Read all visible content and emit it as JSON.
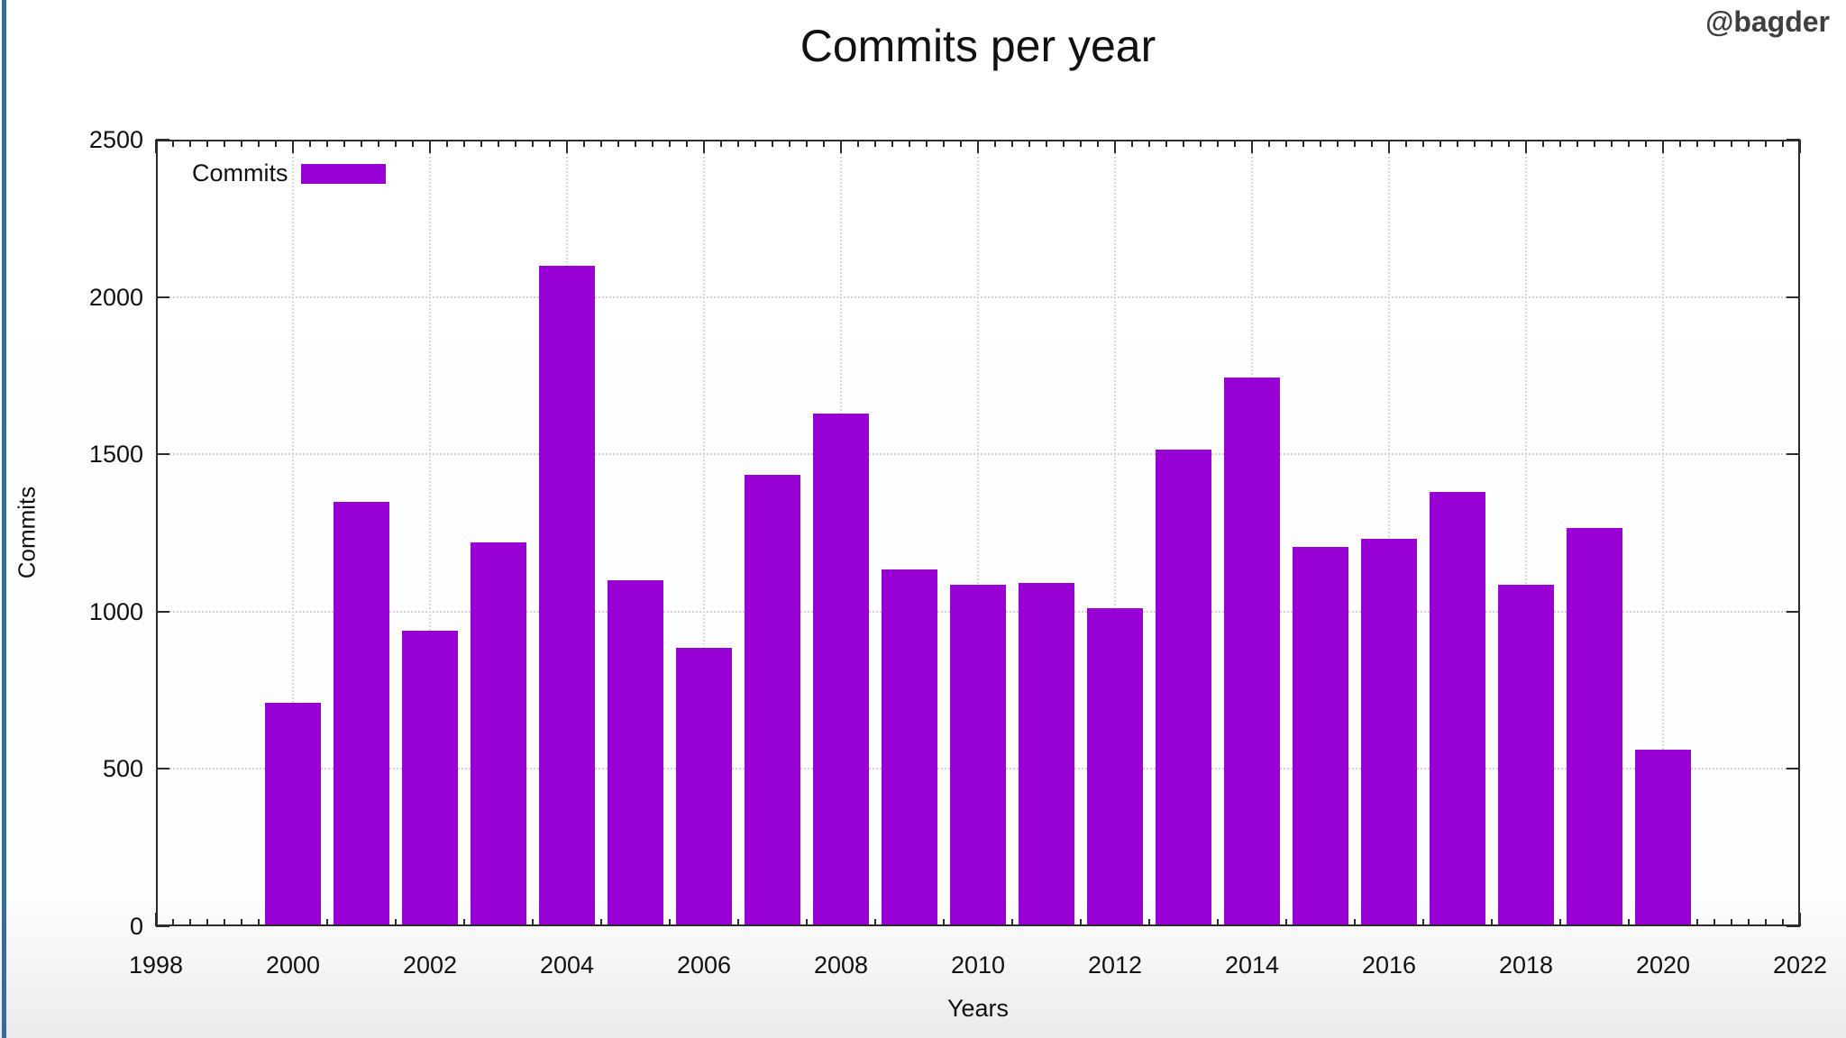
{
  "watermark": "@bagder",
  "colors": {
    "bar": "#9701d4",
    "axis": "#2b2b2b",
    "grid": "#d5d5d5",
    "left_strip": "#336d9f",
    "watermark_text": "#3f3f3f",
    "background": "#ffffff"
  },
  "chart_data": {
    "type": "bar",
    "title": "Commits per year",
    "xlabel": "Years",
    "ylabel": "Commits",
    "legend_label": "Commits",
    "legend_position": "top-left-inside",
    "grid": true,
    "bar_color": "#9701d4",
    "xlim": [
      1998,
      2022
    ],
    "ylim": [
      0,
      2500
    ],
    "x_tick_step": 2,
    "x_minor_ticks_per_year": 4,
    "x_tick_labels": [
      "1998",
      "2000",
      "2002",
      "2004",
      "2006",
      "2008",
      "2010",
      "2012",
      "2014",
      "2016",
      "2018",
      "2020",
      "2022"
    ],
    "y_tick_labels": [
      "0",
      "500",
      "1000",
      "1500",
      "2000",
      "2500"
    ],
    "y_tick_values": [
      0,
      500,
      1000,
      1500,
      2000,
      2500
    ],
    "grid_years": [
      2000,
      2002,
      2004,
      2006,
      2008,
      2010,
      2012,
      2014,
      2016,
      2018,
      2020
    ],
    "grid_values": [
      500,
      1000,
      1500,
      2000
    ],
    "categories": [
      2000,
      2001,
      2002,
      2003,
      2004,
      2005,
      2006,
      2007,
      2008,
      2009,
      2010,
      2011,
      2012,
      2013,
      2014,
      2015,
      2016,
      2017,
      2018,
      2019,
      2020
    ],
    "values": [
      710,
      1350,
      940,
      1220,
      2100,
      1100,
      885,
      1435,
      1630,
      1135,
      1085,
      1090,
      1010,
      1515,
      1745,
      1205,
      1230,
      1380,
      1085,
      1265,
      560
    ]
  }
}
